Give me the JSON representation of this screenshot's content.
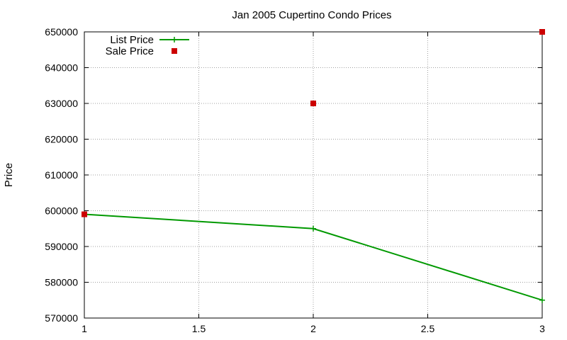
{
  "chart_data": {
    "type": "line",
    "title": "Jan 2005 Cupertino Condo Prices",
    "xlabel": "",
    "ylabel": "Price",
    "xlim": [
      1,
      3
    ],
    "ylim": [
      570000,
      650000
    ],
    "x_ticks": [
      1,
      1.5,
      2,
      2.5,
      3
    ],
    "x_tick_labels": [
      "1",
      "1.5",
      "2",
      "2.5",
      "3"
    ],
    "y_ticks": [
      570000,
      580000,
      590000,
      600000,
      610000,
      620000,
      630000,
      640000,
      650000
    ],
    "y_tick_labels": [
      "570000",
      "580000",
      "590000",
      "600000",
      "610000",
      "620000",
      "630000",
      "640000",
      "650000"
    ],
    "grid": true,
    "legend_position": "top-left",
    "series": [
      {
        "name": "List Price",
        "style": "line-with-plus-markers",
        "color": "#009900",
        "x": [
          1,
          2,
          3
        ],
        "values": [
          599000,
          595000,
          575000
        ]
      },
      {
        "name": "Sale Price",
        "style": "square-markers",
        "color": "#cc0000",
        "x": [
          1,
          2,
          3
        ],
        "values": [
          599000,
          630000,
          650000
        ]
      }
    ]
  }
}
